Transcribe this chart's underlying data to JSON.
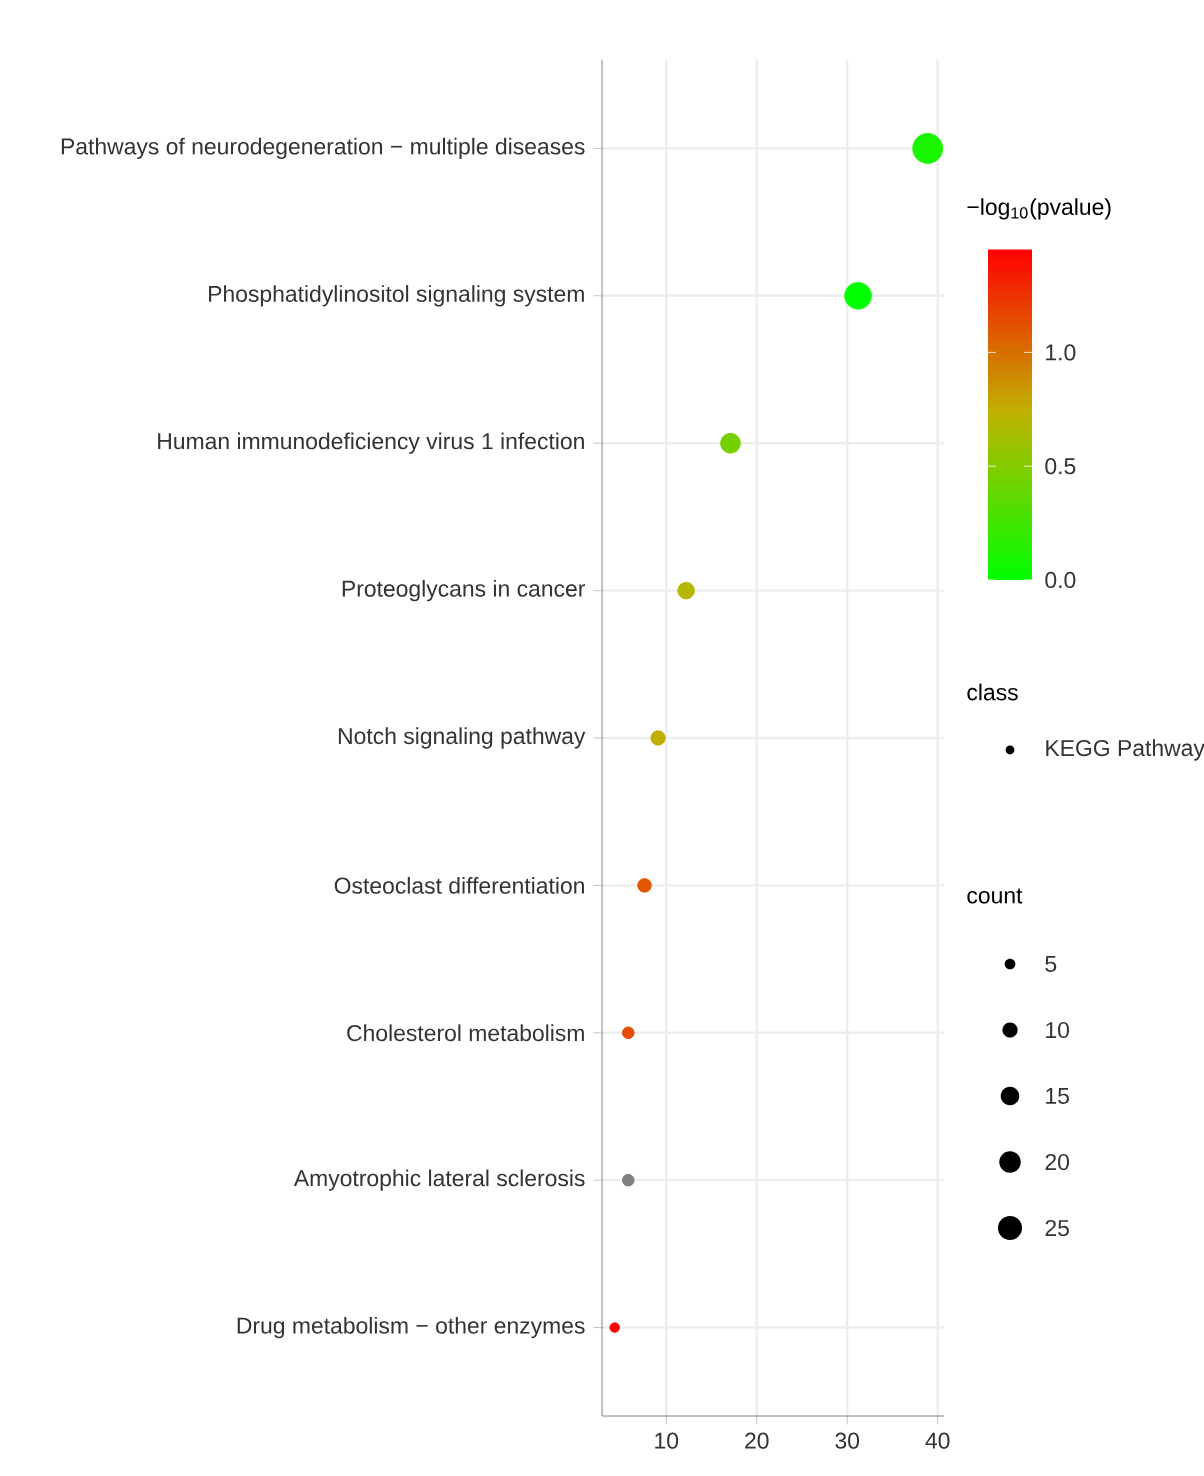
{
  "chart_data": {
    "type": "bubble",
    "categories": [
      "Pathways of neurodegeneration − multiple diseases",
      "Phosphatidylinositol signaling system",
      "Human immunodeficiency virus 1 infection",
      "Proteoglycans in cancer",
      "Notch signaling pathway",
      "Osteoclast differentiation",
      "Cholesterol metabolism",
      "Amyotrophic lateral sclerosis",
      "Drug metabolism − other enzymes"
    ],
    "series": [
      {
        "name": "KEGG Pathway",
        "values": [
          38.9,
          31.2,
          17.1,
          12.2,
          9.1,
          7.6,
          5.8,
          5.8,
          4.3
        ],
        "sizes": [
          39,
          31,
          17,
          12,
          9,
          8,
          6,
          6,
          4
        ],
        "cvalues": [
          0.1,
          0.0,
          0.45,
          0.7,
          0.75,
          1.1,
          1.15,
          null,
          1.45
        ]
      }
    ],
    "orientation": "horizontal",
    "xlim": [
      2.9,
      40.7
    ],
    "xticks": [
      10,
      20,
      30,
      40
    ],
    "clabel": "−log$_{10}$(pvalue)",
    "clim": [
      0,
      1.45
    ],
    "cticks": [
      {
        "value": 0,
        "label": "0.0"
      },
      {
        "value": 0.5,
        "label": "0.5"
      },
      {
        "value": 1.0,
        "label": "1.0"
      }
    ],
    "legend_title": "class",
    "legend": "right",
    "size_legend": [
      5,
      10,
      15,
      20,
      25
    ],
    "annotations": [
      "count"
    ],
    "grid": true
  }
}
